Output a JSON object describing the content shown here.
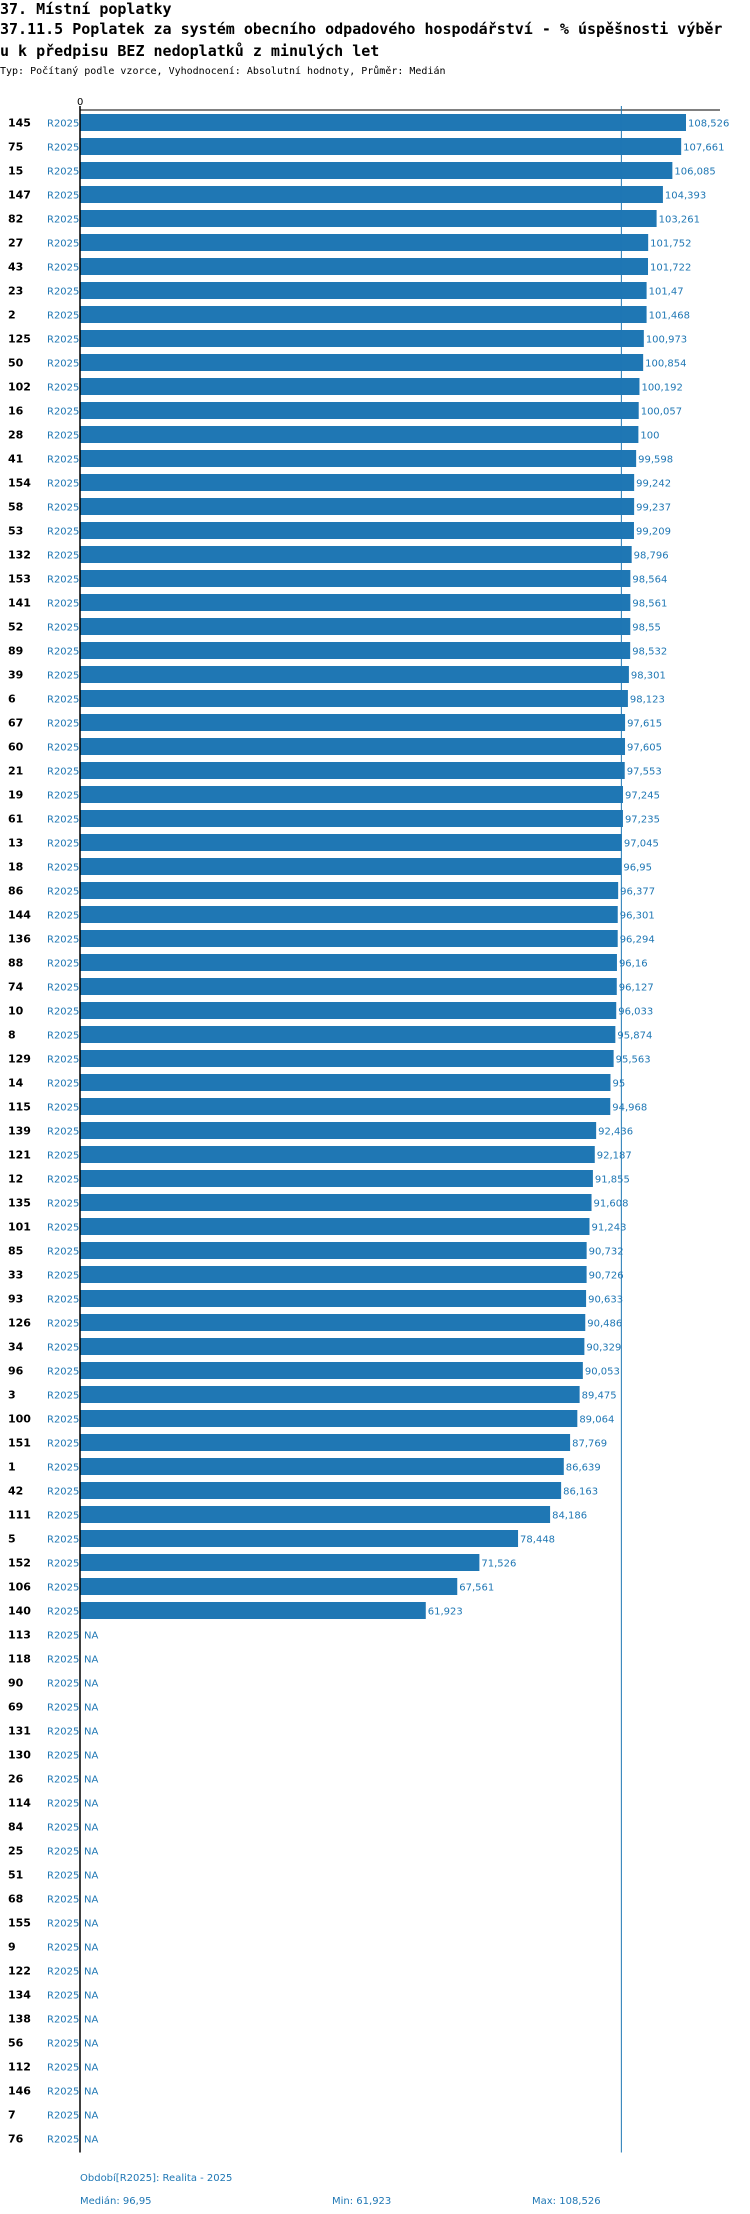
{
  "header": {
    "title_line1": "37. Místní poplatky",
    "title_line2": "37.11.5 Poplatek za systém obecního odpadového hospodářství  - % úspěšnosti výběr",
    "title_line3": "u k předpisu BEZ nedoplatků z minulých let",
    "subtitle": "Typ: Počítaný podle vzorce, Vyhodnocení: Absolutní hodnoty, Průměr: Medián"
  },
  "chart_data": {
    "type": "bar",
    "orientation": "horizontal",
    "bar_color": "#1f77b4",
    "text_color": "#1f77b4",
    "axis_zero_label": "0",
    "xlim": [
      0,
      108.526
    ],
    "median_line": 96.95,
    "period": "R2025",
    "na_label": "NA",
    "rows": [
      {
        "id": "145",
        "value": 108.526,
        "label": "108,526"
      },
      {
        "id": "75",
        "value": 107.661,
        "label": "107,661"
      },
      {
        "id": "15",
        "value": 106.085,
        "label": "106,085"
      },
      {
        "id": "147",
        "value": 104.393,
        "label": "104,393"
      },
      {
        "id": "82",
        "value": 103.261,
        "label": "103,261"
      },
      {
        "id": "27",
        "value": 101.752,
        "label": "101,752"
      },
      {
        "id": "43",
        "value": 101.722,
        "label": "101,722"
      },
      {
        "id": "23",
        "value": 101.47,
        "label": "101,47"
      },
      {
        "id": "2",
        "value": 101.468,
        "label": "101,468"
      },
      {
        "id": "125",
        "value": 100.973,
        "label": "100,973"
      },
      {
        "id": "50",
        "value": 100.854,
        "label": "100,854"
      },
      {
        "id": "102",
        "value": 100.192,
        "label": "100,192"
      },
      {
        "id": "16",
        "value": 100.057,
        "label": "100,057"
      },
      {
        "id": "28",
        "value": 100,
        "label": "100"
      },
      {
        "id": "41",
        "value": 99.598,
        "label": "99,598"
      },
      {
        "id": "154",
        "value": 99.242,
        "label": "99,242"
      },
      {
        "id": "58",
        "value": 99.237,
        "label": "99,237"
      },
      {
        "id": "53",
        "value": 99.209,
        "label": "99,209"
      },
      {
        "id": "132",
        "value": 98.796,
        "label": "98,796"
      },
      {
        "id": "153",
        "value": 98.564,
        "label": "98,564"
      },
      {
        "id": "141",
        "value": 98.561,
        "label": "98,561"
      },
      {
        "id": "52",
        "value": 98.55,
        "label": "98,55"
      },
      {
        "id": "89",
        "value": 98.532,
        "label": "98,532"
      },
      {
        "id": "39",
        "value": 98.301,
        "label": "98,301"
      },
      {
        "id": "6",
        "value": 98.123,
        "label": "98,123"
      },
      {
        "id": "67",
        "value": 97.615,
        "label": "97,615"
      },
      {
        "id": "60",
        "value": 97.605,
        "label": "97,605"
      },
      {
        "id": "21",
        "value": 97.553,
        "label": "97,553"
      },
      {
        "id": "19",
        "value": 97.245,
        "label": "97,245"
      },
      {
        "id": "61",
        "value": 97.235,
        "label": "97,235"
      },
      {
        "id": "13",
        "value": 97.045,
        "label": "97,045"
      },
      {
        "id": "18",
        "value": 96.95,
        "label": "96,95"
      },
      {
        "id": "86",
        "value": 96.377,
        "label": "96,377"
      },
      {
        "id": "144",
        "value": 96.301,
        "label": "96,301"
      },
      {
        "id": "136",
        "value": 96.294,
        "label": "96,294"
      },
      {
        "id": "88",
        "value": 96.16,
        "label": "96,16"
      },
      {
        "id": "74",
        "value": 96.127,
        "label": "96,127"
      },
      {
        "id": "10",
        "value": 96.033,
        "label": "96,033"
      },
      {
        "id": "8",
        "value": 95.874,
        "label": "95,874"
      },
      {
        "id": "129",
        "value": 95.563,
        "label": "95,563"
      },
      {
        "id": "14",
        "value": 95,
        "label": "95"
      },
      {
        "id": "115",
        "value": 94.968,
        "label": "94,968"
      },
      {
        "id": "139",
        "value": 92.436,
        "label": "92,436"
      },
      {
        "id": "121",
        "value": 92.187,
        "label": "92,187"
      },
      {
        "id": "12",
        "value": 91.855,
        "label": "91,855"
      },
      {
        "id": "135",
        "value": 91.608,
        "label": "91,608"
      },
      {
        "id": "101",
        "value": 91.243,
        "label": "91,243"
      },
      {
        "id": "85",
        "value": 90.732,
        "label": "90,732"
      },
      {
        "id": "33",
        "value": 90.726,
        "label": "90,726"
      },
      {
        "id": "93",
        "value": 90.633,
        "label": "90,633"
      },
      {
        "id": "126",
        "value": 90.486,
        "label": "90,486"
      },
      {
        "id": "34",
        "value": 90.329,
        "label": "90,329"
      },
      {
        "id": "96",
        "value": 90.053,
        "label": "90,053"
      },
      {
        "id": "3",
        "value": 89.475,
        "label": "89,475"
      },
      {
        "id": "100",
        "value": 89.064,
        "label": "89,064"
      },
      {
        "id": "151",
        "value": 87.769,
        "label": "87,769"
      },
      {
        "id": "1",
        "value": 86.639,
        "label": "86,639"
      },
      {
        "id": "42",
        "value": 86.163,
        "label": "86,163"
      },
      {
        "id": "111",
        "value": 84.186,
        "label": "84,186"
      },
      {
        "id": "5",
        "value": 78.448,
        "label": "78,448"
      },
      {
        "id": "152",
        "value": 71.526,
        "label": "71,526"
      },
      {
        "id": "106",
        "value": 67.561,
        "label": "67,561"
      },
      {
        "id": "140",
        "value": 61.923,
        "label": "61,923"
      },
      {
        "id": "113",
        "value": null,
        "label": "NA"
      },
      {
        "id": "118",
        "value": null,
        "label": "NA"
      },
      {
        "id": "90",
        "value": null,
        "label": "NA"
      },
      {
        "id": "69",
        "value": null,
        "label": "NA"
      },
      {
        "id": "131",
        "value": null,
        "label": "NA"
      },
      {
        "id": "130",
        "value": null,
        "label": "NA"
      },
      {
        "id": "26",
        "value": null,
        "label": "NA"
      },
      {
        "id": "114",
        "value": null,
        "label": "NA"
      },
      {
        "id": "84",
        "value": null,
        "label": "NA"
      },
      {
        "id": "25",
        "value": null,
        "label": "NA"
      },
      {
        "id": "51",
        "value": null,
        "label": "NA"
      },
      {
        "id": "68",
        "value": null,
        "label": "NA"
      },
      {
        "id": "155",
        "value": null,
        "label": "NA"
      },
      {
        "id": "9",
        "value": null,
        "label": "NA"
      },
      {
        "id": "122",
        "value": null,
        "label": "NA"
      },
      {
        "id": "134",
        "value": null,
        "label": "NA"
      },
      {
        "id": "138",
        "value": null,
        "label": "NA"
      },
      {
        "id": "56",
        "value": null,
        "label": "NA"
      },
      {
        "id": "112",
        "value": null,
        "label": "NA"
      },
      {
        "id": "146",
        "value": null,
        "label": "NA"
      },
      {
        "id": "7",
        "value": null,
        "label": "NA"
      },
      {
        "id": "76",
        "value": null,
        "label": "NA"
      }
    ],
    "footer": {
      "period_text": "Období[R2025]: Realita - 2025",
      "median_text": "Medián: 96,95",
      "min_text": "Min: 61,923",
      "max_text": "Max: 108,526"
    }
  }
}
